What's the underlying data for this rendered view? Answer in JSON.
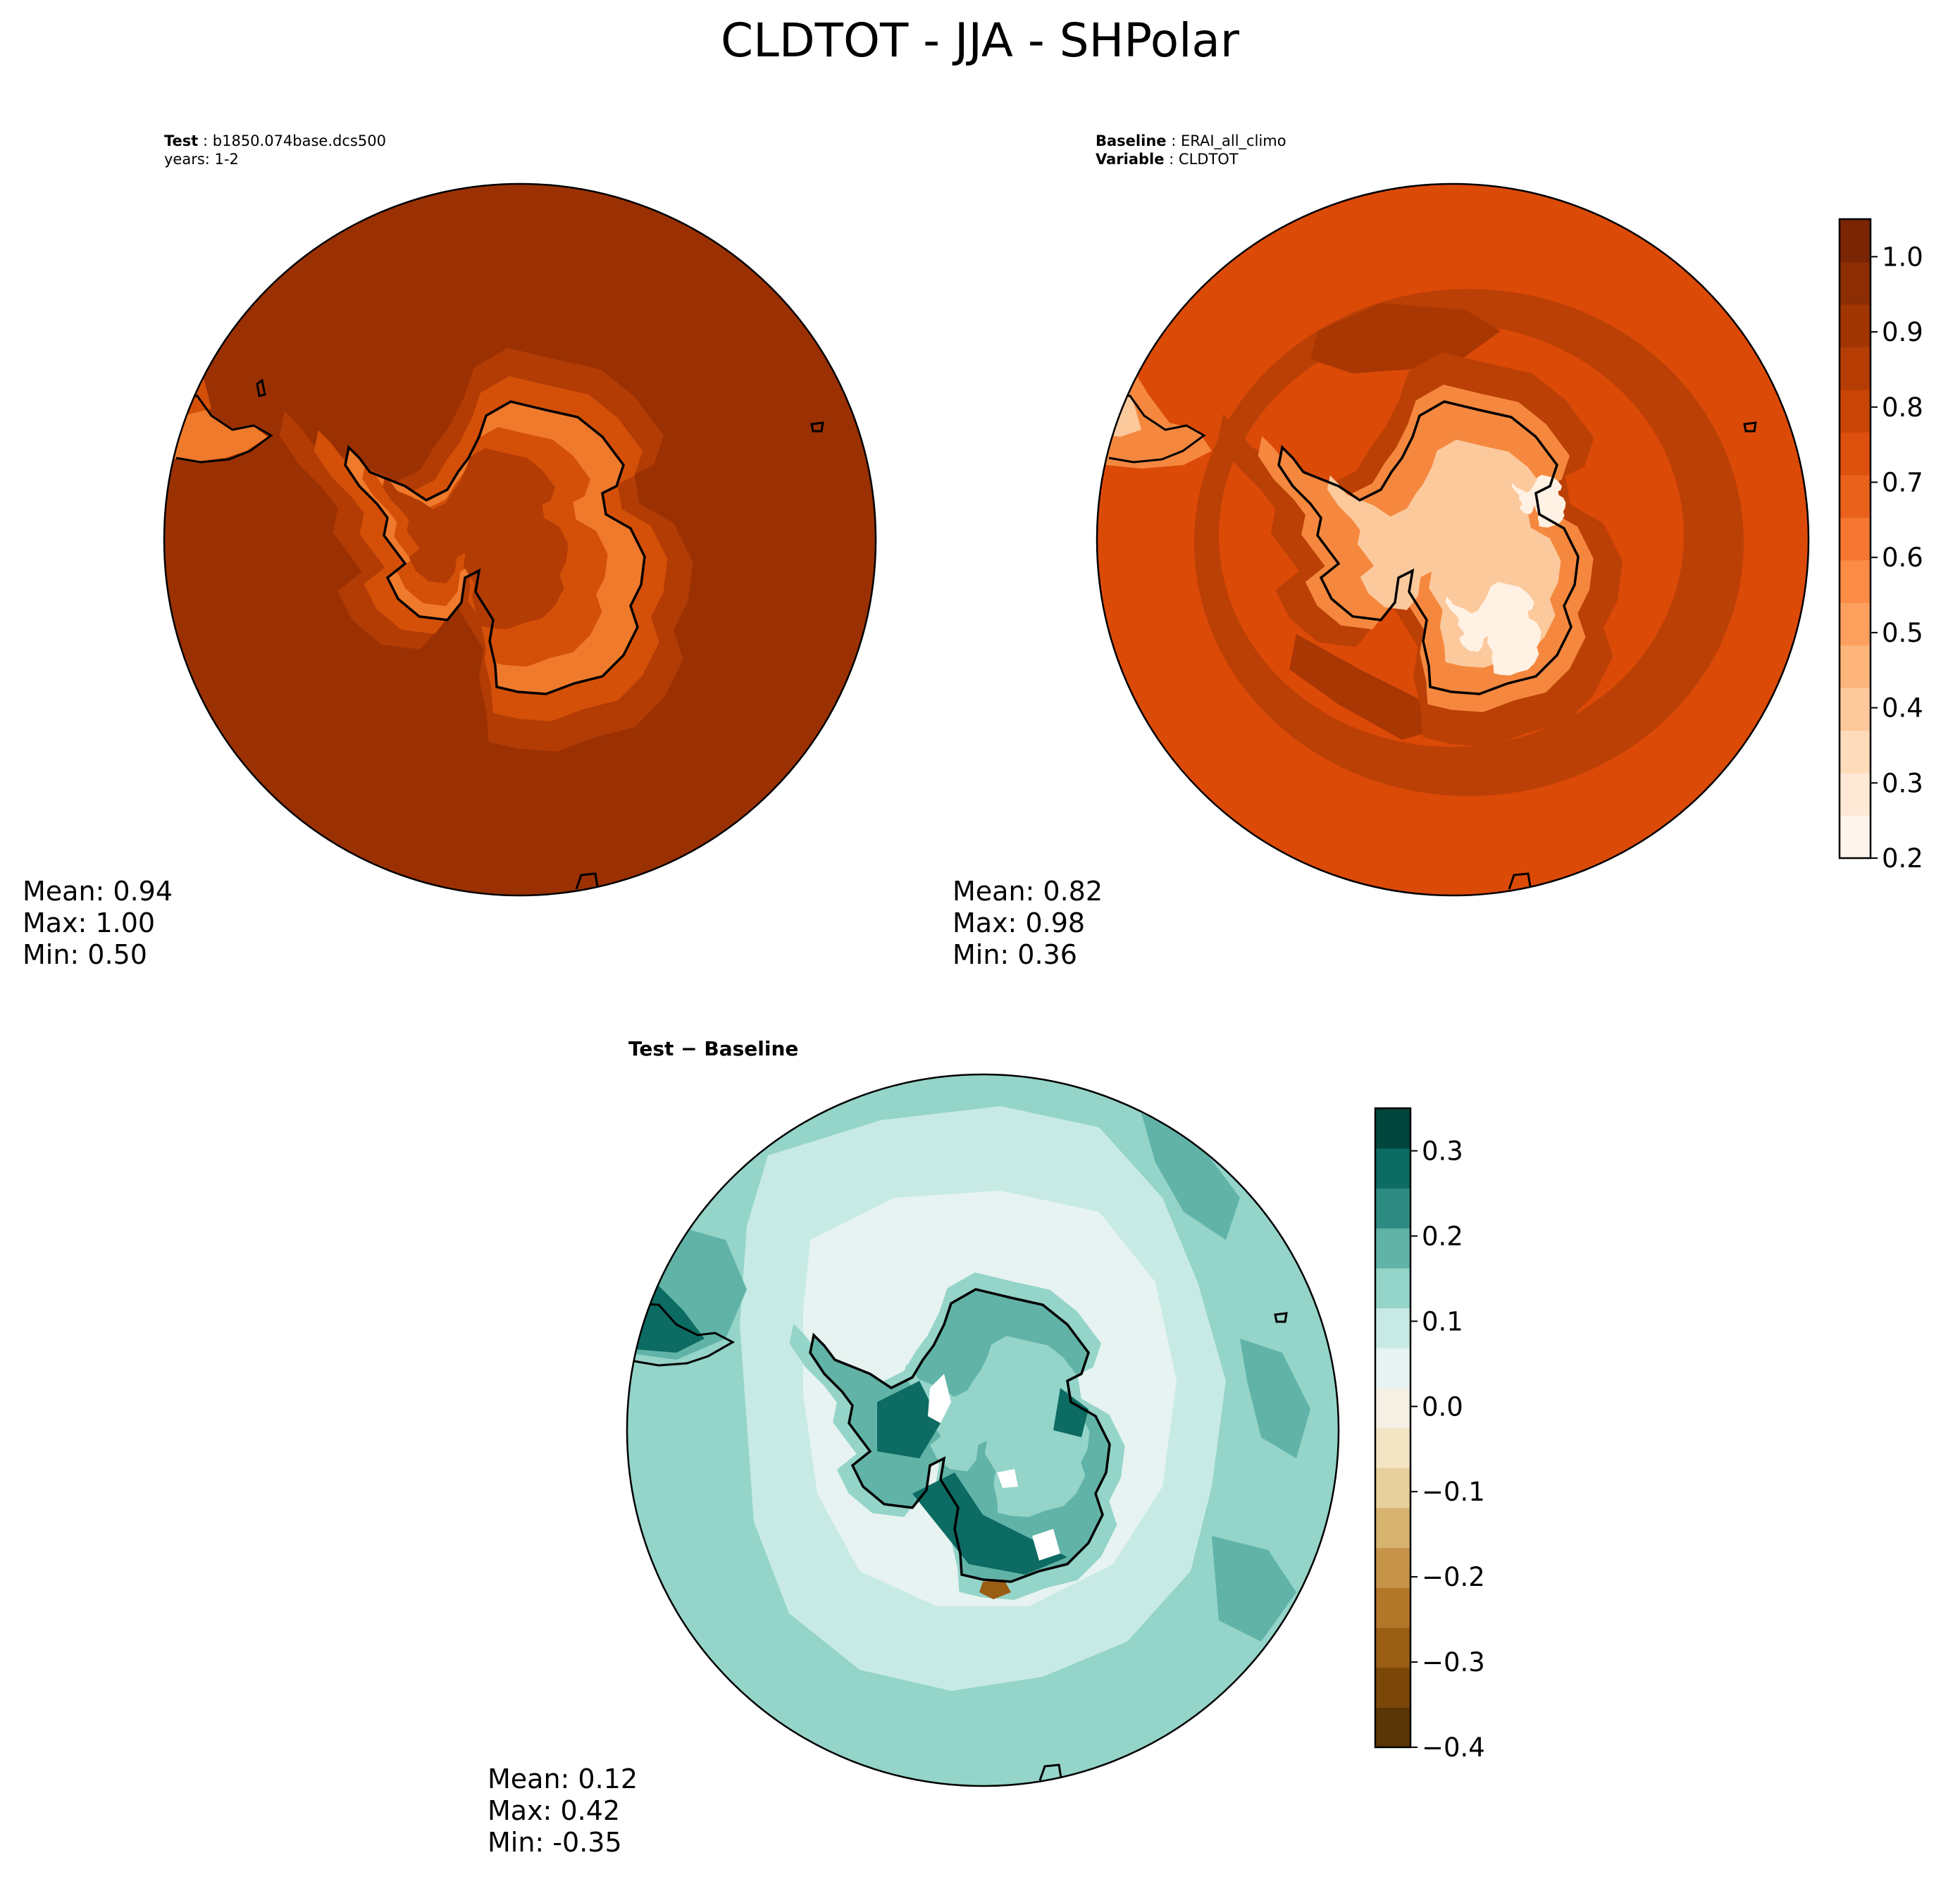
{
  "figure": {
    "title": "CLDTOT - JJA - SHPolar"
  },
  "panels": {
    "test": {
      "label_bold": "Test",
      "label_value": "b1850.074base.dcs500",
      "label_line2": "years: 1-2",
      "stats": {
        "mean": "Mean:  0.94",
        "max": "Max:  1.00",
        "min": "Min:  0.50"
      }
    },
    "baseline": {
      "label_bold": "Baseline",
      "label_value": "ERAI_all_climo",
      "label2_bold": "Variable",
      "label2_value": "CLDTOT",
      "stats": {
        "mean": "Mean:  0.82",
        "max": "Max:  0.98",
        "min": "Min:  0.36"
      }
    },
    "difference": {
      "title": "Test − Baseline",
      "stats": {
        "mean": "Mean:  0.12",
        "max": "Max:  0.42",
        "min": "Min: -0.35"
      }
    }
  },
  "colorbars": {
    "main": {
      "ticks": [
        "0.2",
        "0.3",
        "0.4",
        "0.5",
        "0.6",
        "0.7",
        "0.8",
        "0.9",
        "1.0"
      ],
      "tick_values": [
        0.2,
        0.3,
        0.4,
        0.5,
        0.6,
        0.7,
        0.8,
        0.9,
        1.0
      ],
      "range": [
        0.2,
        1.05
      ],
      "colors": [
        "#fff4eb",
        "#fee9d6",
        "#fddbbb",
        "#fdc99c",
        "#fdb57b",
        "#fda05e",
        "#fb8b45",
        "#f57630",
        "#ea611c",
        "#dc4f0c",
        "#c94506",
        "#b53d04",
        "#a13603",
        "#8c2d04",
        "#7a2503"
      ]
    },
    "diff": {
      "ticks": [
        "−0.4",
        "−0.3",
        "−0.2",
        "−0.1",
        "0.0",
        "0.1",
        "0.2",
        "0.3"
      ],
      "tick_values": [
        -0.4,
        -0.3,
        -0.2,
        -0.1,
        0.0,
        0.1,
        0.2,
        0.3
      ],
      "range": [
        -0.4,
        0.35
      ],
      "colors": [
        "#5a3506",
        "#7b4709",
        "#995d14",
        "#b3772a",
        "#c69449",
        "#d7b370",
        "#e8d09c",
        "#f3e5c4",
        "#f5f0e4",
        "#e6f3f0",
        "#c7eae5",
        "#94d4c9",
        "#61b3a7",
        "#2e8b82",
        "#0c6b63",
        "#01463c"
      ]
    }
  },
  "map_colors": {
    "test_ocean": "#9b3103",
    "test_mid": "#b33c05",
    "test_ring": "#d45008",
    "test_inner": "#f07a2c",
    "base_ocean": "#dc4a08",
    "base_band": "#bb4006",
    "base_dark": "#a93704",
    "base_ring": "#f5883e",
    "base_inner": "#fcc99d",
    "base_bright": "#fff1e3",
    "diff_ocean": "#94d4c9",
    "diff_light": "#c7eae5",
    "diff_pale": "#e6f3f0",
    "diff_teal": "#61b3a7",
    "diff_dark": "#0c6b63",
    "diff_brown": "#995d14",
    "coast": "#000000"
  }
}
